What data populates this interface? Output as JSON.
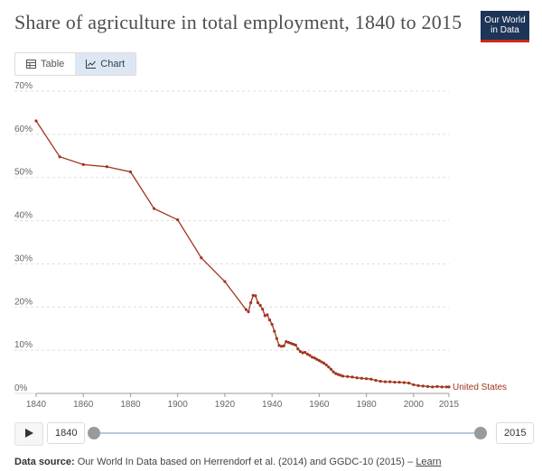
{
  "title": "Share of agriculture in total employment, 1840 to 2015",
  "logo": {
    "line1": "Our World",
    "line2": "in Data"
  },
  "tabs": [
    {
      "label": "Table",
      "icon": "table-icon"
    },
    {
      "label": "Chart",
      "icon": "line-chart-icon",
      "active": true
    }
  ],
  "timeline": {
    "start_label": "1840",
    "end_label": "2015"
  },
  "source": {
    "label": "Data source:",
    "text": "Our World In Data based on Herrendorf et al. (2014) and GGDC-10 (2015) –",
    "link": "Learn"
  },
  "colors": {
    "series": "#a2351f",
    "grid": "#dddddd",
    "axis_text": "#666666",
    "accent": "#1d3557"
  },
  "chart_data": {
    "type": "line",
    "title": "Share of agriculture in total employment, 1840 to 2015",
    "xlabel": "",
    "ylabel": "",
    "xlim": [
      1840,
      2015
    ],
    "ylim": [
      0,
      70
    ],
    "y_ticks": [
      0,
      10,
      20,
      30,
      40,
      50,
      60,
      70
    ],
    "y_tick_labels": [
      "0%",
      "10%",
      "20%",
      "30%",
      "40%",
      "50%",
      "60%",
      "70%"
    ],
    "x_ticks": [
      1840,
      1860,
      1880,
      1900,
      1920,
      1940,
      1960,
      1980,
      2000,
      2015
    ],
    "x_tick_labels": [
      "1840",
      "1860",
      "1880",
      "1900",
      "1920",
      "1940",
      "1960",
      "1980",
      "2000",
      "2015"
    ],
    "grid": "horizontal dashed",
    "series": [
      {
        "name": "United States",
        "x": [
          1840,
          1850,
          1860,
          1870,
          1880,
          1890,
          1900,
          1910,
          1920,
          1929,
          1930,
          1931,
          1932,
          1933,
          1934,
          1935,
          1936,
          1937,
          1938,
          1939,
          1940,
          1941,
          1942,
          1943,
          1944,
          1945,
          1946,
          1947,
          1948,
          1949,
          1950,
          1951,
          1952,
          1953,
          1954,
          1955,
          1956,
          1957,
          1958,
          1959,
          1960,
          1961,
          1962,
          1963,
          1964,
          1965,
          1966,
          1967,
          1968,
          1969,
          1970,
          1972,
          1974,
          1976,
          1978,
          1980,
          1982,
          1984,
          1986,
          1988,
          1990,
          1992,
          1994,
          1996,
          1998,
          2000,
          2002,
          2004,
          2006,
          2008,
          2010,
          2012,
          2014,
          2015
        ],
        "y": [
          63.1,
          54.8,
          53.0,
          52.5,
          51.3,
          42.8,
          40.2,
          31.4,
          25.9,
          19.4,
          18.9,
          21.0,
          22.7,
          22.6,
          21.0,
          20.4,
          19.5,
          18.0,
          18.2,
          17.0,
          16.0,
          14.4,
          12.7,
          11.1,
          10.9,
          11.0,
          12.0,
          11.8,
          11.6,
          11.4,
          11.2,
          10.3,
          9.7,
          9.4,
          9.5,
          9.1,
          8.8,
          8.4,
          8.2,
          7.9,
          7.6,
          7.3,
          7.0,
          6.6,
          6.1,
          5.6,
          5.0,
          4.6,
          4.4,
          4.2,
          4.0,
          3.9,
          3.8,
          3.6,
          3.5,
          3.4,
          3.3,
          3.0,
          2.8,
          2.7,
          2.7,
          2.6,
          2.6,
          2.5,
          2.4,
          2.0,
          1.8,
          1.7,
          1.6,
          1.5,
          1.6,
          1.5,
          1.5,
          1.5
        ]
      }
    ]
  }
}
